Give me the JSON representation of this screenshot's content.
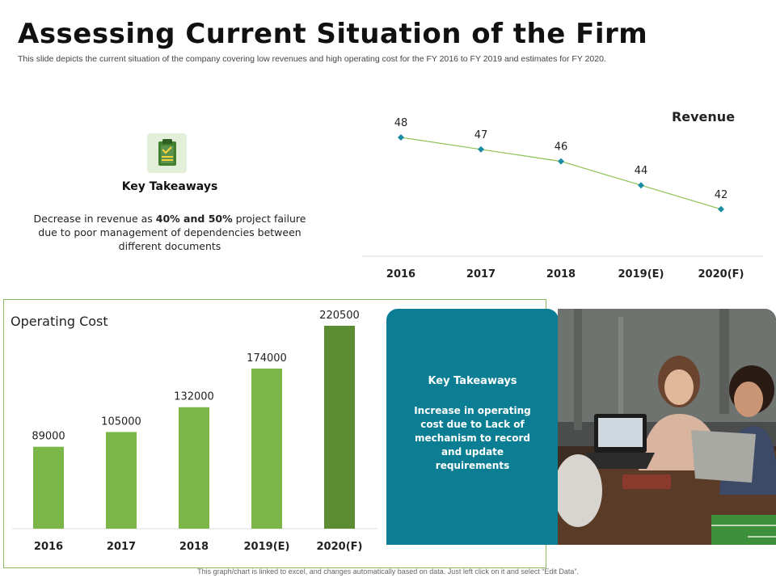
{
  "header": {
    "title": "Assessing Current Situation of the Firm",
    "subtitle": "This slide depicts the current situation of the company covering low revenues and high operating cost for the FY 2016 to FY 2019 and estimates for FY 2020."
  },
  "takeaway_left": {
    "icon": "clipboard-check-icon",
    "heading": "Key Takeaways",
    "text_prefix": "Decrease in revenue as ",
    "bold_1": "40%",
    "text_and": " and ",
    "bold_2": "50%",
    "text_suffix": " project failure due to poor management of dependencies between different documents"
  },
  "takeaway_right": {
    "heading": "Key Takeaways",
    "text": "Increase in operating cost due to Lack of mechanism to record and update requirements"
  },
  "photo": {
    "icon": "team-meeting-photo"
  },
  "footer": {
    "note": "This graph/chart is linked to excel, and changes automatically based on data. Just left click on it and select “Edit Data”."
  },
  "colors": {
    "accent_green": "#7ab648",
    "dark_green": "#5b8c32",
    "line_green": "#8cc153",
    "marker_teal": "#1b8ba3",
    "card_teal": "#0b7e94"
  },
  "chart_data": [
    {
      "type": "line",
      "title": "Revenue",
      "categories": [
        "2016",
        "2017",
        "2018",
        "2019(E)",
        "2020(F)"
      ],
      "series": [
        {
          "values": [
            48,
            47,
            46,
            44,
            42
          ]
        }
      ],
      "data_labels": [
        "48",
        "47",
        "46",
        "44",
        "42"
      ],
      "grid": false,
      "legend": "none"
    },
    {
      "type": "bar",
      "title": "Operating Cost",
      "categories": [
        "2016",
        "2017",
        "2018",
        "2019(E)",
        "2020(F)"
      ],
      "series": [
        {
          "values": [
            89000,
            105000,
            132000,
            174000,
            220500
          ]
        }
      ],
      "data_labels": [
        "89000",
        "105000",
        "132000",
        "174000",
        "220500"
      ],
      "ylim": [
        0,
        220500
      ],
      "highlight_index": 4,
      "grid": false,
      "legend": "none"
    }
  ]
}
